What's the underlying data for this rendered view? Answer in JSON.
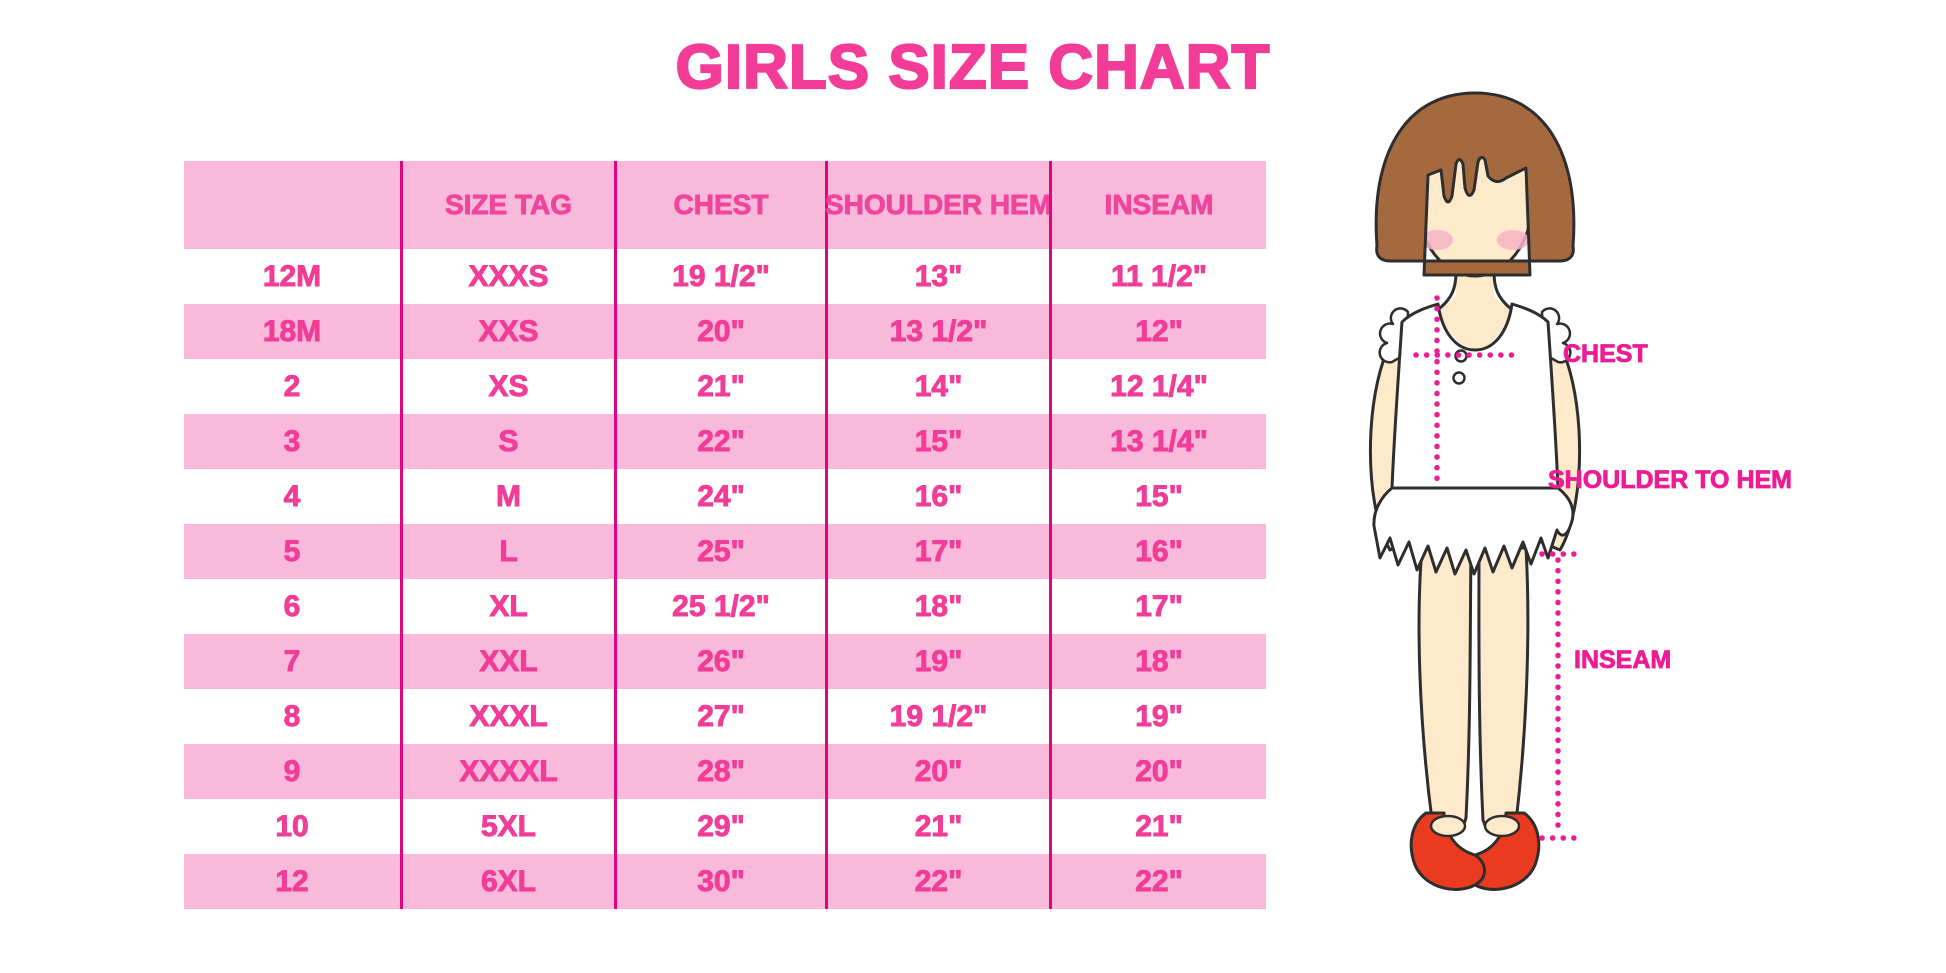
{
  "title": "GIRLS SIZE CHART",
  "chart_data": {
    "type": "table",
    "title": "GIRLS SIZE CHART",
    "columns": [
      "",
      "SIZE TAG",
      "CHEST",
      "SHOULDER HEM",
      "INSEAM"
    ],
    "rows": [
      [
        "12M",
        "XXXS",
        "19 1/2\"",
        "13\"",
        "11 1/2\""
      ],
      [
        "18M",
        "XXS",
        "20\"",
        "13 1/2\"",
        "12\""
      ],
      [
        "2",
        "XS",
        "21\"",
        "14\"",
        "12 1/4\""
      ],
      [
        "3",
        "S",
        "22\"",
        "15\"",
        "13 1/4\""
      ],
      [
        "4",
        "M",
        "24\"",
        "16\"",
        "15\""
      ],
      [
        "5",
        "L",
        "25\"",
        "17\"",
        "16\""
      ],
      [
        "6",
        "XL",
        "25 1/2\"",
        "18\"",
        "17\""
      ],
      [
        "7",
        "XXL",
        "26\"",
        "19\"",
        "18\""
      ],
      [
        "8",
        "XXXL",
        "27\"",
        "19 1/2\"",
        "19\""
      ],
      [
        "9",
        "XXXXL",
        "28\"",
        "20\"",
        "20\""
      ],
      [
        "10",
        "5XL",
        "29\"",
        "21\"",
        "21\""
      ],
      [
        "12",
        "6XL",
        "30\"",
        "22\"",
        "22\""
      ]
    ],
    "row_stripe_pattern": "header pink, then data rows alternate white/pink starting with white",
    "layout_hints": {
      "gridlines": "vertical magenta dividers only",
      "outer_border": "none"
    }
  },
  "figure": {
    "labels": {
      "chest": "CHEST",
      "shoulder_to_hem": "SHOULDER TO HEM",
      "inseam": "INSEAM"
    },
    "description": "illustrated girl with brown bob hair, white ruffled sleeveless top and skirt, red mary-jane shoes, magenta dotted measurement lines"
  },
  "colors": {
    "title_pink": "#F33C98",
    "table_text_pink": "#F13C98",
    "stripe_pink": "#F9B9DB",
    "divider_magenta": "#E1067F",
    "label_magenta": "#EE1C94",
    "hair_brown": "#A5693F",
    "skin": "#FCEACB",
    "blush": "#F7B3C6",
    "shoe_red": "#EA3B20",
    "outline_dark": "#2E2E2E",
    "background": "#FFFFFF"
  }
}
